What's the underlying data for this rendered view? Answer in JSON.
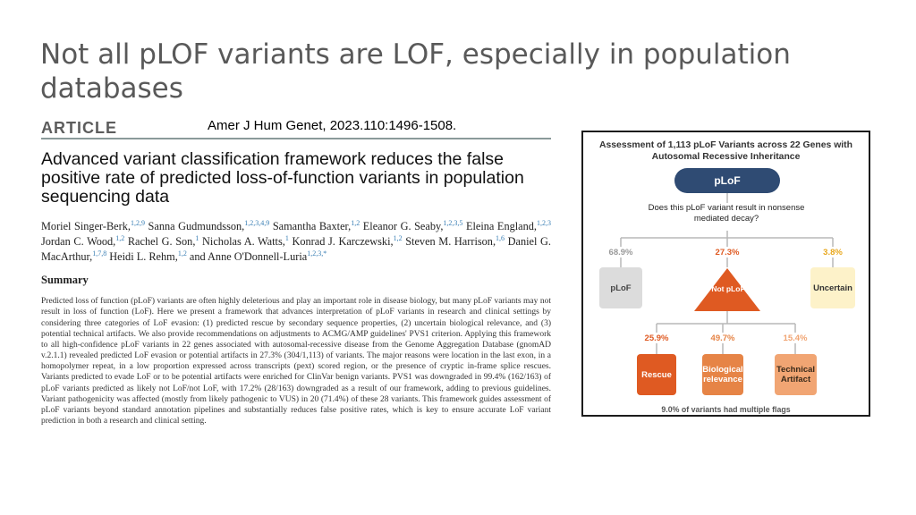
{
  "slide": {
    "title": "Not all pLOF variants are LOF, especially in population databases",
    "citation": "Amer J Hum Genet, 2023.110:1496-1508."
  },
  "article": {
    "tag": "ARTICLE",
    "title": "Advanced variant classification framework reduces the false positive rate of predicted loss-of-function variants in population sequencing data",
    "authors": [
      {
        "name": "Moriel Singer-Berk,",
        "aff": "1,2,9"
      },
      {
        "name": "Sanna Gudmundsson,",
        "aff": "1,2,3,4,9"
      },
      {
        "name": "Samantha Baxter,",
        "aff": "1,2"
      },
      {
        "name": "Eleanor G. Seaby,",
        "aff": "1,2,3,5"
      },
      {
        "name": "Eleina England,",
        "aff": "1,2,3"
      },
      {
        "name": "Jordan C. Wood,",
        "aff": "1,2"
      },
      {
        "name": "Rachel G. Son,",
        "aff": "1"
      },
      {
        "name": "Nicholas A. Watts,",
        "aff": "1"
      },
      {
        "name": "Konrad J. Karczewski,",
        "aff": "1,2"
      },
      {
        "name": "Steven M. Harrison,",
        "aff": "1,6"
      },
      {
        "name": "Daniel G. MacArthur,",
        "aff": "1,7,8"
      },
      {
        "name": "Heidi L. Rehm,",
        "aff": "1,2"
      },
      {
        "name": "and Anne O'Donnell-Luria",
        "aff": "1,2,3,*"
      }
    ],
    "summary_heading": "Summary",
    "summary_text": "Predicted loss of function (pLoF) variants are often highly deleterious and play an important role in disease biology, but many pLoF variants may not result in loss of function (LoF). Here we present a framework that advances interpretation of pLoF variants in research and clinical settings by considering three categories of LoF evasion: (1) predicted rescue by secondary sequence properties, (2) uncertain biological relevance, and (3) potential technical artifacts. We also provide recommendations on adjustments to ACMG/AMP guidelines' PVS1 criterion. Applying this framework to all high-confidence pLoF variants in 22 genes associated with autosomal-recessive disease from the Genome Aggregation Database (gnomAD v.2.1.1) revealed predicted LoF evasion or potential artifacts in 27.3% (304/1,113) of variants. The major reasons were location in the last exon, in a homopolymer repeat, in a low proportion expressed across transcripts (pext) scored region, or the presence of cryptic in-frame splice rescues. Variants predicted to evade LoF or to be potential artifacts were enriched for ClinVar benign variants. PVS1 was downgraded in 99.4% (162/163) of pLoF variants predicted as likely not LoF/not LoF, with 17.2% (28/163) downgraded as a result of our framework, adding to previous guidelines. Variant pathogenicity was affected (mostly from likely pathogenic to VUS) in 20 (71.4%) of these 28 variants. This framework guides assessment of pLoF variants beyond standard annotation pipelines and substantially reduces false positive rates, which is key to ensure accurate LoF variant prediction in both a research and clinical setting."
  },
  "figure": {
    "title": "Assessment of 1,113 pLoF Variants across 22 Genes with Autosomal Recessive Inheritance",
    "root_label": "pLoF",
    "question": "Does this pLoF variant result in nonsense mediated decay?",
    "branches": [
      {
        "pct": "68.9%",
        "label": "pLoF",
        "color": "#9a9a9a"
      },
      {
        "pct": "27.3%",
        "label": "Not pLoF",
        "color": "#df5a22"
      },
      {
        "pct": "3.8%",
        "label": "Uncertain",
        "color": "#e8a71c"
      }
    ],
    "sub_branches": [
      {
        "pct": "25.9%",
        "label": "Rescue",
        "color": "#df5a22"
      },
      {
        "pct": "49.7%",
        "label": "Biological relevance",
        "color": "#e68446"
      },
      {
        "pct": "15.4%",
        "label": "Technical Artifact",
        "color": "#f1a573"
      }
    ],
    "footer": "9.0% of variants had multiple flags",
    "colors": {
      "navy": "#2f4b73",
      "connector": "#b8b8b8",
      "not_plof": "#df5a22"
    }
  }
}
